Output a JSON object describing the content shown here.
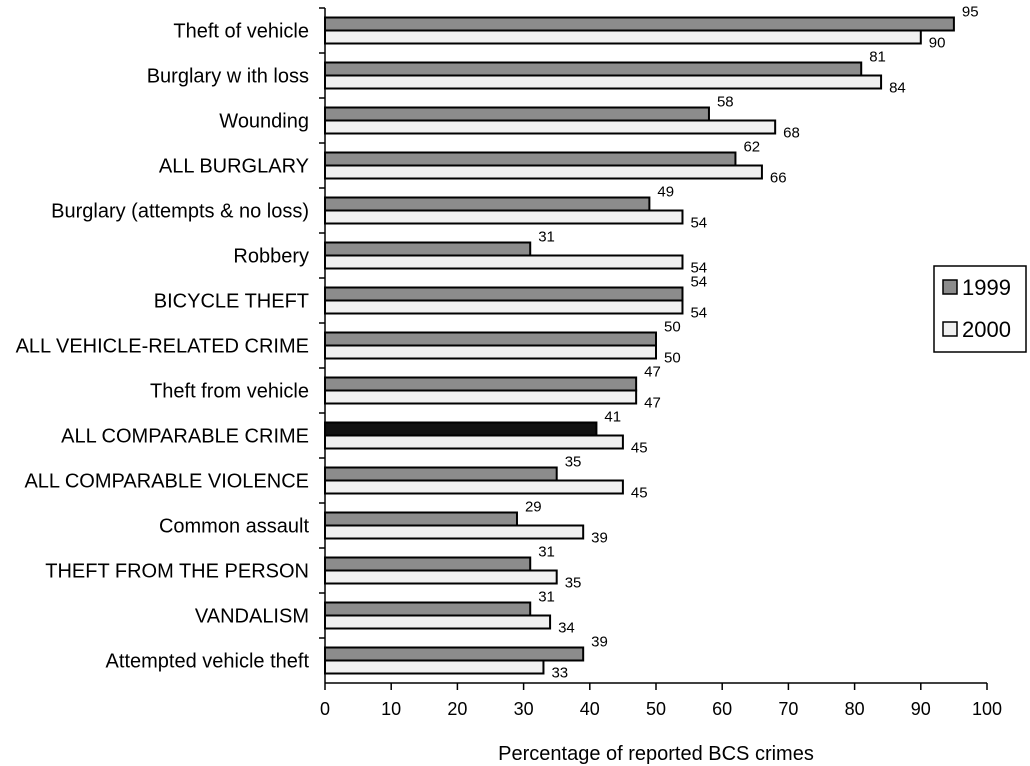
{
  "chart_data": {
    "type": "bar",
    "orientation": "horizontal",
    "xlabel": "Percentage of reported BCS crimes",
    "xlim": [
      0,
      100
    ],
    "xticks": [
      0,
      10,
      20,
      30,
      40,
      50,
      60,
      70,
      80,
      90,
      100
    ],
    "legend_position": "right",
    "grid": false,
    "categories": [
      "Theft of vehicle",
      "Burglary w ith loss",
      "Wounding",
      "ALL BURGLARY",
      "Burglary (attempts & no loss)",
      "Robbery",
      "BICYCLE THEFT",
      "ALL VEHICLE-RELATED CRIME",
      "Theft from vehicle",
      "ALL COMPARABLE CRIME",
      "ALL COMPARABLE VIOLENCE",
      "Common assault",
      "THEFT FROM THE PERSON",
      "VANDALISM",
      "Attempted vehicle theft"
    ],
    "series": [
      {
        "name": "1999",
        "color": "#8c8c8c",
        "values": [
          95,
          81,
          58,
          62,
          49,
          31,
          54,
          50,
          47,
          41,
          35,
          29,
          31,
          31,
          39
        ],
        "highlight_index": 9,
        "highlight_color": "#111111"
      },
      {
        "name": "2000",
        "color": "#f0f0f0",
        "values": [
          90,
          84,
          68,
          66,
          54,
          54,
          54,
          50,
          47,
          45,
          45,
          39,
          35,
          34,
          33
        ]
      }
    ]
  }
}
